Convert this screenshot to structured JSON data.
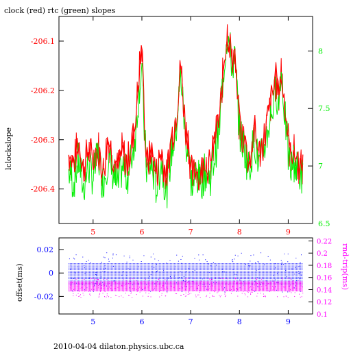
{
  "chart_data": [
    {
      "type": "line",
      "title": "clock (red) rtc (green) slopes",
      "ylabel": "lclockslope",
      "xticks": [
        "5",
        "6",
        "7",
        "8",
        "9"
      ],
      "xlim": [
        4.3,
        9.5
      ],
      "ylim_left": [
        -206.47,
        -206.05
      ],
      "yticks_left": [
        "-206.1",
        "-206.2",
        "-206.3",
        "-206.4"
      ],
      "ylim_right": [
        6.5,
        8.3
      ],
      "yticks_right": [
        "6.5",
        "7",
        "7.5",
        "8"
      ],
      "series": [
        {
          "name": "clock",
          "color": "#ff0000",
          "axis": "left",
          "x": [
            4.5,
            4.6,
            4.7,
            4.8,
            4.9,
            5.0,
            5.1,
            5.2,
            5.3,
            5.4,
            5.5,
            5.6,
            5.7,
            5.8,
            5.85,
            5.9,
            5.95,
            6.0,
            6.05,
            6.1,
            6.2,
            6.3,
            6.4,
            6.5,
            6.6,
            6.7,
            6.75,
            6.8,
            6.85,
            6.9,
            6.95,
            7.0,
            7.05,
            7.1,
            7.2,
            7.3,
            7.4,
            7.5,
            7.6,
            7.65,
            7.7,
            7.75,
            7.8,
            7.85,
            7.9,
            7.95,
            8.0,
            8.1,
            8.2,
            8.3,
            8.4,
            8.5,
            8.6,
            8.7,
            8.75,
            8.8,
            8.85,
            8.9,
            8.95,
            9.0,
            9.05,
            9.1,
            9.2,
            9.3
          ],
          "y": [
            -206.33,
            -206.35,
            -206.3,
            -206.36,
            -206.32,
            -206.34,
            -206.31,
            -206.37,
            -206.3,
            -206.33,
            -206.36,
            -206.32,
            -206.35,
            -206.31,
            -206.28,
            -206.22,
            -206.15,
            -206.12,
            -206.25,
            -206.35,
            -206.33,
            -206.37,
            -206.32,
            -206.38,
            -206.3,
            -206.25,
            -206.2,
            -206.15,
            -206.22,
            -206.28,
            -206.3,
            -206.36,
            -206.38,
            -206.35,
            -206.37,
            -206.34,
            -206.36,
            -206.3,
            -206.25,
            -206.18,
            -206.12,
            -206.08,
            -206.1,
            -206.15,
            -206.12,
            -206.2,
            -206.28,
            -206.3,
            -206.35,
            -206.28,
            -206.33,
            -206.3,
            -206.25,
            -206.2,
            -206.18,
            -206.22,
            -206.15,
            -206.2,
            -206.25,
            -206.3,
            -206.34,
            -206.32,
            -206.35,
            -206.36
          ]
        },
        {
          "name": "rtc",
          "color": "#00ee00",
          "axis": "right",
          "x": [
            4.5,
            4.6,
            4.7,
            4.8,
            4.9,
            5.0,
            5.1,
            5.2,
            5.3,
            5.4,
            5.5,
            5.6,
            5.7,
            5.8,
            5.85,
            5.9,
            5.95,
            6.0,
            6.05,
            6.1,
            6.2,
            6.3,
            6.4,
            6.5,
            6.6,
            6.7,
            6.75,
            6.8,
            6.85,
            6.9,
            6.95,
            7.0,
            7.05,
            7.1,
            7.2,
            7.3,
            7.4,
            7.5,
            7.6,
            7.65,
            7.7,
            7.75,
            7.8,
            7.85,
            7.9,
            7.95,
            8.0,
            8.1,
            8.2,
            8.3,
            8.4,
            8.5,
            8.6,
            8.7,
            8.75,
            8.8,
            8.85,
            8.9,
            8.95,
            9.0,
            9.05,
            9.1,
            9.2,
            9.3
          ],
          "y": [
            6.95,
            6.85,
            7.05,
            6.8,
            7.0,
            6.9,
            7.1,
            6.85,
            7.05,
            6.95,
            6.8,
            7.0,
            6.9,
            7.1,
            7.2,
            7.45,
            7.7,
            7.85,
            7.3,
            6.95,
            7.0,
            6.8,
            7.05,
            6.75,
            7.1,
            7.3,
            7.55,
            7.8,
            7.5,
            7.2,
            7.15,
            6.9,
            6.8,
            6.95,
            6.85,
            6.95,
            6.9,
            7.1,
            7.35,
            7.7,
            7.95,
            8.15,
            8.05,
            7.85,
            7.95,
            7.65,
            7.3,
            7.15,
            6.95,
            7.25,
            7.0,
            7.15,
            7.35,
            7.55,
            7.7,
            7.5,
            7.85,
            7.6,
            7.35,
            7.1,
            6.95,
            7.05,
            6.95,
            6.9
          ]
        }
      ]
    },
    {
      "type": "scatter",
      "ylabel_left": "offset(ms)",
      "ylabel_right": "rnd-trip(ms)",
      "xticks": [
        "5",
        "6",
        "7",
        "8",
        "9"
      ],
      "xlim": [
        4.3,
        9.5
      ],
      "ylim_left": [
        -0.035,
        0.03
      ],
      "yticks_left": [
        "0.02",
        "0",
        "-0.02"
      ],
      "ylim_right": [
        0.1,
        0.225
      ],
      "yticks_right": [
        "0.22",
        "0.2",
        "0.18",
        "0.16",
        "0.14",
        "0.12",
        "0.1"
      ],
      "series": [
        {
          "name": "offset",
          "color": "#0000ff",
          "axis": "left",
          "x_range": [
            4.5,
            9.3
          ],
          "band": [
            -0.01,
            0.008
          ],
          "scatter_extent": [
            -0.016,
            0.018
          ]
        },
        {
          "name": "rnd-trip",
          "color": "#ff00ff",
          "axis": "right",
          "x_range": [
            4.5,
            9.3
          ],
          "band": [
            0.138,
            0.153
          ],
          "scatter_extent": [
            0.128,
            0.16
          ]
        }
      ]
    }
  ],
  "footer": "2010-04-04  dilaton.physics.ubc.ca"
}
